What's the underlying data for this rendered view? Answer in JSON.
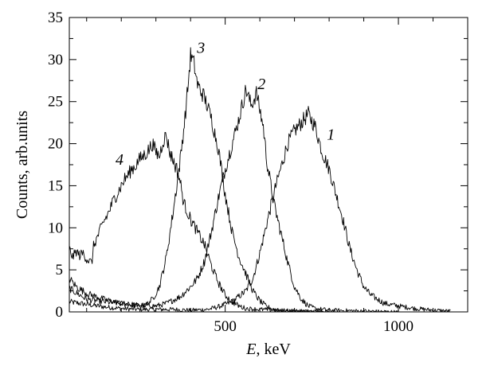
{
  "chart_data": {
    "type": "line",
    "title": "",
    "xlabel": {
      "var": "E",
      "unit": ", keV"
    },
    "ylabel": "Counts, arb.units",
    "xlim": [
      50,
      1200
    ],
    "ylim": [
      0,
      35
    ],
    "xticks": [
      500,
      1000
    ],
    "yticks": [
      0,
      5,
      10,
      15,
      20,
      25,
      30,
      35
    ],
    "grid": false,
    "legend": "none",
    "series": [
      {
        "label": "1",
        "points": [
          [
            50,
            1.2
          ],
          [
            100,
            0.9
          ],
          [
            150,
            0.6
          ],
          [
            200,
            0.4
          ],
          [
            250,
            0.3
          ],
          [
            300,
            0.3
          ],
          [
            350,
            0.3
          ],
          [
            400,
            0.2
          ],
          [
            450,
            0.3
          ],
          [
            480,
            0.6
          ],
          [
            520,
            1.2
          ],
          [
            560,
            2.5
          ],
          [
            580,
            4
          ],
          [
            600,
            7
          ],
          [
            620,
            10.5
          ],
          [
            640,
            14
          ],
          [
            660,
            17
          ],
          [
            680,
            20
          ],
          [
            700,
            21.5
          ],
          [
            720,
            22.5
          ],
          [
            740,
            23.5
          ],
          [
            760,
            22
          ],
          [
            780,
            19
          ],
          [
            800,
            17
          ],
          [
            820,
            14
          ],
          [
            840,
            11
          ],
          [
            860,
            7.5
          ],
          [
            880,
            5
          ],
          [
            900,
            3
          ],
          [
            920,
            2
          ],
          [
            940,
            1.5
          ],
          [
            960,
            1
          ],
          [
            1000,
            0.7
          ],
          [
            1050,
            0.4
          ],
          [
            1100,
            0.2
          ],
          [
            1150,
            0.1
          ]
        ]
      },
      {
        "label": "2",
        "points": [
          [
            50,
            2.8
          ],
          [
            100,
            1.5
          ],
          [
            150,
            1.2
          ],
          [
            200,
            1.0
          ],
          [
            250,
            0.8
          ],
          [
            300,
            0.7
          ],
          [
            330,
            1.0
          ],
          [
            370,
            1.8
          ],
          [
            400,
            3
          ],
          [
            420,
            4
          ],
          [
            440,
            6
          ],
          [
            460,
            9.5
          ],
          [
            480,
            13.5
          ],
          [
            500,
            17
          ],
          [
            520,
            20
          ],
          [
            540,
            23
          ],
          [
            560,
            26.5
          ],
          [
            575,
            24.5
          ],
          [
            590,
            26
          ],
          [
            610,
            22
          ],
          [
            620,
            18
          ],
          [
            640,
            13
          ],
          [
            660,
            9.5
          ],
          [
            680,
            6
          ],
          [
            700,
            3
          ],
          [
            720,
            1.5
          ],
          [
            740,
            0.7
          ],
          [
            760,
            0.4
          ],
          [
            800,
            0.2
          ],
          [
            900,
            0.1
          ],
          [
            1000,
            0
          ]
        ]
      },
      {
        "label": "3",
        "points": [
          [
            50,
            4
          ],
          [
            70,
            3
          ],
          [
            100,
            2.2
          ],
          [
            150,
            1.5
          ],
          [
            200,
            1.0
          ],
          [
            250,
            0.7
          ],
          [
            270,
            0.8
          ],
          [
            290,
            1.5
          ],
          [
            310,
            3
          ],
          [
            330,
            6.5
          ],
          [
            350,
            12
          ],
          [
            370,
            18
          ],
          [
            385,
            23.5
          ],
          [
            395,
            28
          ],
          [
            400,
            30.5
          ],
          [
            410,
            29.5
          ],
          [
            420,
            27
          ],
          [
            440,
            25.5
          ],
          [
            460,
            23
          ],
          [
            480,
            19.5
          ],
          [
            500,
            14
          ],
          [
            520,
            9.5
          ],
          [
            540,
            6.5
          ],
          [
            560,
            4.5
          ],
          [
            580,
            2.5
          ],
          [
            600,
            1.3
          ],
          [
            620,
            0.6
          ],
          [
            650,
            0.2
          ],
          [
            700,
            0.1
          ],
          [
            800,
            0
          ]
        ]
      },
      {
        "label": "4",
        "points": [
          [
            50,
            7.5
          ],
          [
            60,
            6.5
          ],
          [
            70,
            7.2
          ],
          [
            80,
            6.7
          ],
          [
            90,
            7
          ],
          [
            100,
            6.3
          ],
          [
            115,
            5.8
          ],
          [
            120,
            7.8
          ],
          [
            130,
            8.8
          ],
          [
            140,
            9.8
          ],
          [
            150,
            10.8
          ],
          [
            160,
            11.5
          ],
          [
            170,
            12.5
          ],
          [
            180,
            13.5
          ],
          [
            190,
            14.2
          ],
          [
            200,
            15
          ],
          [
            210,
            15.8
          ],
          [
            220,
            16.3
          ],
          [
            230,
            17
          ],
          [
            240,
            17.3
          ],
          [
            250,
            18
          ],
          [
            260,
            18.4
          ],
          [
            270,
            18.8
          ],
          [
            280,
            19.3
          ],
          [
            290,
            20
          ],
          [
            300,
            19
          ],
          [
            310,
            18.5
          ],
          [
            320,
            20.3
          ],
          [
            330,
            21
          ],
          [
            340,
            19
          ],
          [
            350,
            18
          ],
          [
            360,
            17
          ],
          [
            370,
            15.5
          ],
          [
            380,
            13
          ],
          [
            390,
            12
          ],
          [
            400,
            11
          ],
          [
            420,
            9.5
          ],
          [
            440,
            8
          ],
          [
            460,
            5.5
          ],
          [
            480,
            3.5
          ],
          [
            500,
            2
          ],
          [
            520,
            1.2
          ],
          [
            540,
            0.7
          ],
          [
            560,
            0.4
          ],
          [
            600,
            0.3
          ],
          [
            700,
            0.1
          ],
          [
            800,
            0
          ]
        ]
      }
    ],
    "curve_labels": [
      {
        "text": "1",
        "x": 805,
        "y": 20.5
      },
      {
        "text": "2",
        "x": 605,
        "y": 26.5
      },
      {
        "text": "3",
        "x": 430,
        "y": 30.8
      },
      {
        "text": "4",
        "x": 195,
        "y": 17.5
      }
    ]
  }
}
